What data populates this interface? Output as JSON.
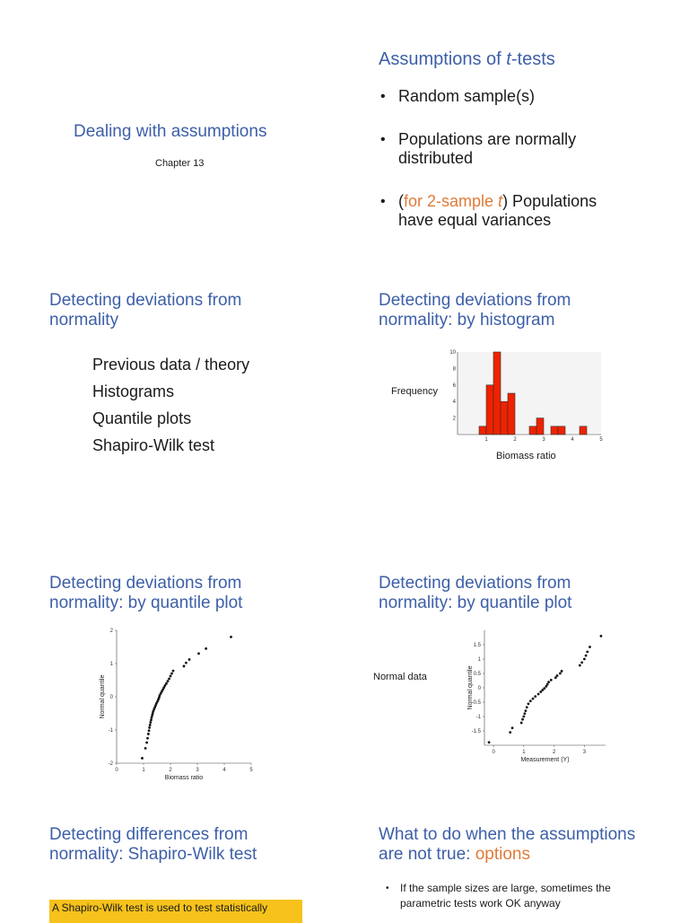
{
  "slide1": {
    "title": "Dealing with assumptions",
    "subtitle": "Chapter 13"
  },
  "slide2": {
    "title_prefix": "Assumptions of ",
    "title_italic": "t",
    "title_suffix": "-tests",
    "bullets": [
      {
        "text": "Random sample(s)"
      },
      {
        "text": "Populations are normally distributed"
      },
      {
        "prefix": "(",
        "accent": "for 2-sample ",
        "accent_italic": "t",
        "suffix": ") Populations have equal variances"
      }
    ]
  },
  "slide3": {
    "title": "Detecting deviations from normality",
    "items": [
      "Previous data / theory",
      "Histograms",
      "Quantile plots",
      "Shapiro-Wilk test"
    ]
  },
  "slide4": {
    "title": "Detecting deviations from normality: by histogram",
    "ylabel": "Frequency",
    "xlabel": "Biomass ratio"
  },
  "slide5": {
    "title": "Detecting deviations from normality: by quantile plot"
  },
  "slide6": {
    "title": "Detecting deviations from normality: by quantile plot",
    "side_label": "Normal data"
  },
  "slide7": {
    "title": "Detecting differences from normality: Shapiro-Wilk test",
    "highlight": "A Shapiro-Wilk test is used to test statistically"
  },
  "slide8": {
    "title_prefix": "What to do when the assumptions are not true: ",
    "title_accent": "options",
    "notes": [
      "If the sample sizes are large, sometimes the parametric tests work OK anyway"
    ]
  },
  "colors": {
    "title": "#3d5fa8",
    "accent": "#e07b39",
    "bar": "#ee2200",
    "highlight": "#f6c21b"
  },
  "chart_data": [
    {
      "type": "bar",
      "title": "",
      "xlabel": "Biomass ratio",
      "ylabel": "Frequency",
      "x_bin_starts": [
        0.75,
        1.0,
        1.25,
        1.5,
        1.75,
        2.0,
        2.25,
        2.5,
        2.75,
        3.0,
        3.25,
        3.5,
        3.75,
        4.0,
        4.25
      ],
      "bin_width": 0.25,
      "values": [
        1,
        6,
        10,
        4,
        5,
        0,
        0,
        1,
        2,
        0,
        1,
        1,
        0,
        0,
        1
      ],
      "xlim": [
        0,
        5
      ],
      "ylim": [
        0,
        10
      ],
      "xticks": [
        1,
        2,
        3,
        4,
        5
      ],
      "yticks": [
        2,
        4,
        6,
        8,
        10
      ]
    },
    {
      "type": "scatter",
      "title": "",
      "xlabel": "Biomass ratio",
      "ylabel": "Normal quantile",
      "xlim": [
        0,
        5
      ],
      "ylim": [
        -2,
        2
      ],
      "xticks": [
        0,
        1,
        2,
        3,
        4,
        5
      ],
      "yticks": [
        -2,
        -1,
        0,
        1,
        2
      ],
      "points": [
        [
          0.95,
          -1.85
        ],
        [
          1.07,
          -1.55
        ],
        [
          1.12,
          -1.38
        ],
        [
          1.15,
          -1.25
        ],
        [
          1.18,
          -1.12
        ],
        [
          1.2,
          -1.02
        ],
        [
          1.22,
          -0.93
        ],
        [
          1.24,
          -0.85
        ],
        [
          1.26,
          -0.77
        ],
        [
          1.28,
          -0.7
        ],
        [
          1.3,
          -0.63
        ],
        [
          1.32,
          -0.56
        ],
        [
          1.34,
          -0.5
        ],
        [
          1.36,
          -0.44
        ],
        [
          1.39,
          -0.38
        ],
        [
          1.42,
          -0.32
        ],
        [
          1.45,
          -0.26
        ],
        [
          1.48,
          -0.2
        ],
        [
          1.52,
          -0.14
        ],
        [
          1.55,
          -0.08
        ],
        [
          1.58,
          -0.02
        ],
        [
          1.6,
          0.04
        ],
        [
          1.64,
          0.1
        ],
        [
          1.68,
          0.16
        ],
        [
          1.72,
          0.22
        ],
        [
          1.76,
          0.28
        ],
        [
          1.8,
          0.34
        ],
        [
          1.85,
          0.4
        ],
        [
          1.9,
          0.47
        ],
        [
          1.95,
          0.54
        ],
        [
          2.0,
          0.62
        ],
        [
          2.05,
          0.7
        ],
        [
          2.1,
          0.78
        ],
        [
          2.5,
          0.92
        ],
        [
          2.58,
          1.02
        ],
        [
          2.7,
          1.12
        ],
        [
          3.05,
          1.3
        ],
        [
          3.32,
          1.45
        ],
        [
          4.25,
          1.8
        ]
      ]
    },
    {
      "type": "scatter",
      "title": "",
      "xlabel": "Measurement (Y)",
      "ylabel": "Normal quantile",
      "xlim": [
        -0.3,
        3.7
      ],
      "ylim": [
        -2,
        2
      ],
      "xticks": [
        0,
        1,
        2,
        3
      ],
      "yticks": [
        -1.5,
        -1,
        -0.5,
        0,
        0.5,
        1,
        1.5
      ],
      "points": [
        [
          -0.15,
          -1.9
        ],
        [
          0.55,
          -1.55
        ],
        [
          0.62,
          -1.4
        ],
        [
          0.92,
          -1.22
        ],
        [
          0.96,
          -1.1
        ],
        [
          1.0,
          -1.0
        ],
        [
          1.03,
          -0.9
        ],
        [
          1.06,
          -0.8
        ],
        [
          1.1,
          -0.68
        ],
        [
          1.15,
          -0.56
        ],
        [
          1.22,
          -0.46
        ],
        [
          1.3,
          -0.38
        ],
        [
          1.38,
          -0.3
        ],
        [
          1.48,
          -0.22
        ],
        [
          1.56,
          -0.14
        ],
        [
          1.62,
          -0.08
        ],
        [
          1.68,
          -0.02
        ],
        [
          1.74,
          0.05
        ],
        [
          1.78,
          0.12
        ],
        [
          1.82,
          0.2
        ],
        [
          1.9,
          0.27
        ],
        [
          2.05,
          0.35
        ],
        [
          2.1,
          0.42
        ],
        [
          2.2,
          0.5
        ],
        [
          2.25,
          0.58
        ],
        [
          2.85,
          0.78
        ],
        [
          2.92,
          0.88
        ],
        [
          3.0,
          1.0
        ],
        [
          3.05,
          1.12
        ],
        [
          3.1,
          1.25
        ],
        [
          3.18,
          1.42
        ],
        [
          3.55,
          1.8
        ]
      ]
    }
  ]
}
